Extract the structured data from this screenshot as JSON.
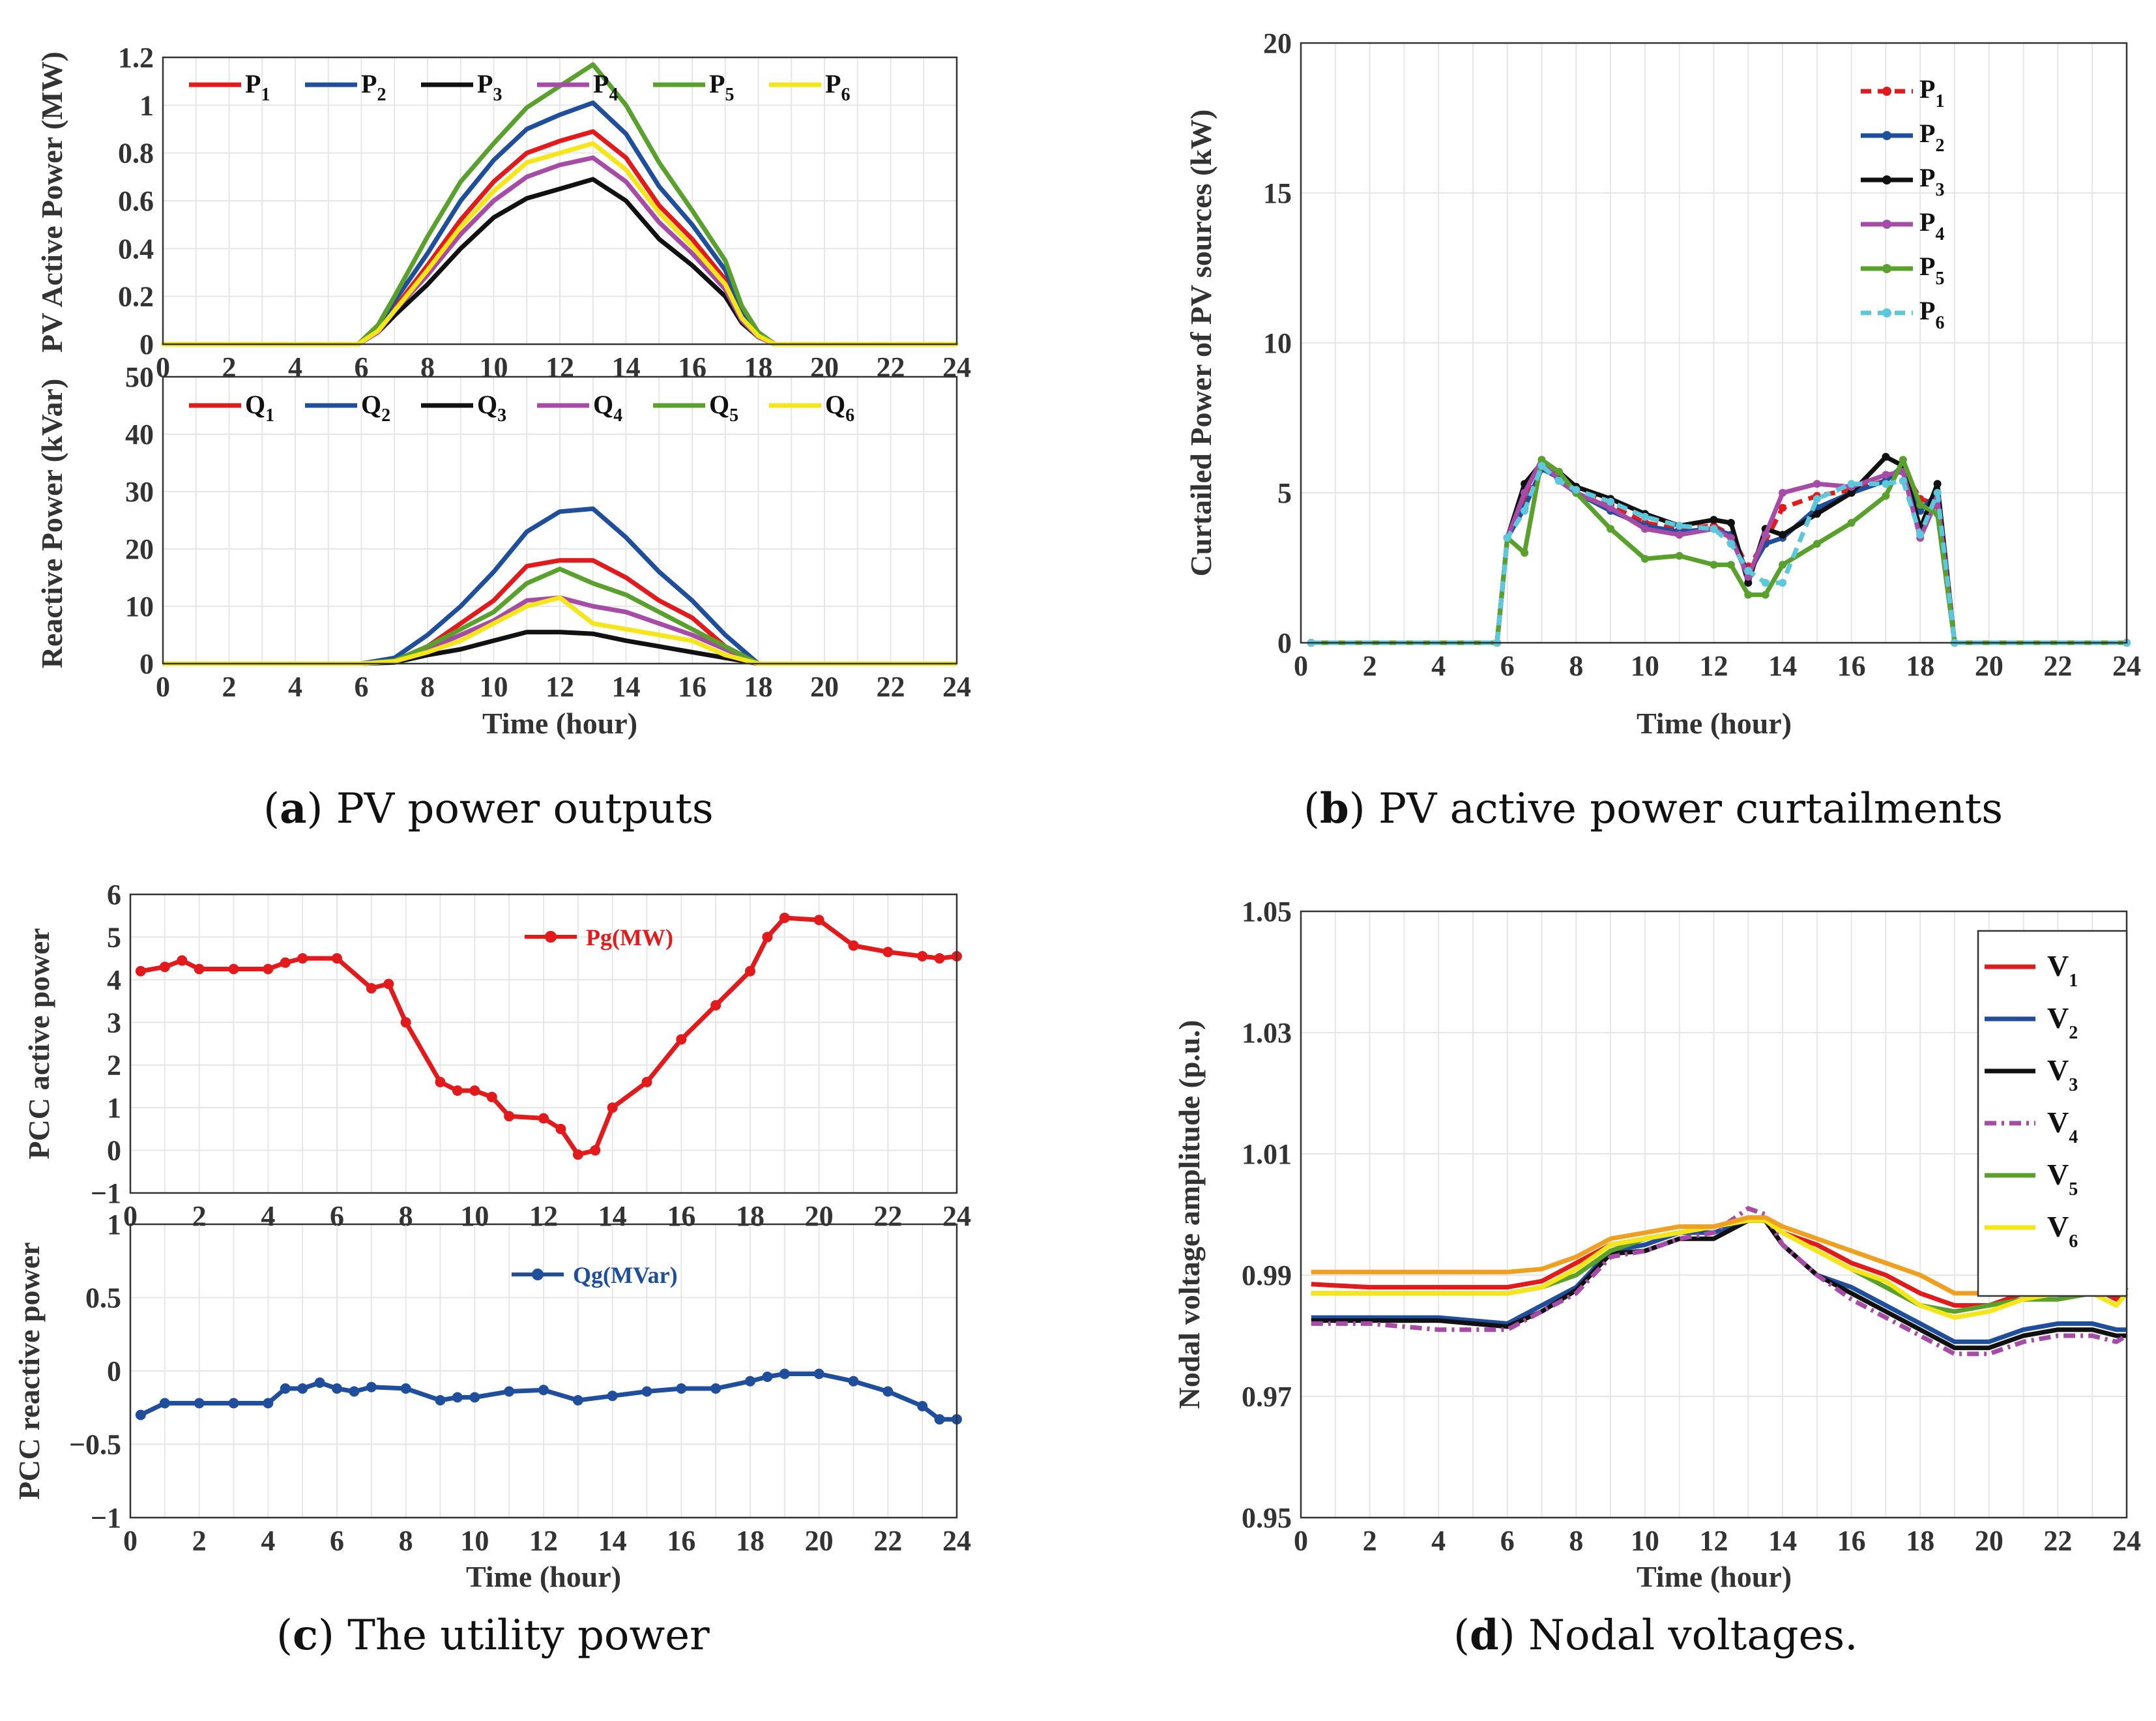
{
  "captions": [
    {
      "id": "a",
      "letter": "a",
      "text": " PV power outputs"
    },
    {
      "id": "b",
      "letter": "b",
      "text": " PV active power curtailments"
    },
    {
      "id": "c",
      "letter": "c",
      "text": " The utility power"
    },
    {
      "id": "d",
      "letter": "d",
      "text": " Nodal voltages."
    }
  ],
  "colors": {
    "red": "#e31a1c",
    "blue": "#1f4e9c",
    "black": "#111111",
    "purple": "#a64ca6",
    "green": "#5aa02c",
    "yellow": "#f5e61a",
    "cyan": "#5bc8dc",
    "orange": "#f0a020"
  },
  "chart_data": [
    {
      "id": "a_top",
      "type": "line",
      "ylabel": "PV Active Power (MW)",
      "xlabel": "",
      "xlim": [
        0,
        24
      ],
      "ylim": [
        0,
        1.2
      ],
      "xticks": [
        0,
        2,
        4,
        6,
        8,
        10,
        12,
        14,
        16,
        18,
        20,
        22,
        24
      ],
      "yticks": [
        0,
        0.2,
        0.4,
        0.6,
        0.8,
        1,
        1.2
      ],
      "ytick_labels": [
        "0",
        "0.2",
        "0.4",
        "0.6",
        "0.8",
        "1",
        "1.2"
      ],
      "x": [
        0,
        5.9,
        6.5,
        7,
        8,
        9,
        10,
        11,
        12,
        13,
        14,
        15,
        16,
        17,
        17.5,
        18,
        18.5,
        24
      ],
      "series": [
        {
          "name": "P",
          "sub": "1",
          "color": "red",
          "values": [
            0,
            0,
            0.06,
            0.15,
            0.33,
            0.52,
            0.68,
            0.8,
            0.85,
            0.89,
            0.78,
            0.58,
            0.44,
            0.27,
            0.12,
            0.04,
            0,
            0
          ]
        },
        {
          "name": "P",
          "sub": "2",
          "color": "blue",
          "values": [
            0,
            0,
            0.07,
            0.18,
            0.38,
            0.6,
            0.77,
            0.9,
            0.96,
            1.01,
            0.88,
            0.66,
            0.5,
            0.31,
            0.14,
            0.05,
            0,
            0
          ]
        },
        {
          "name": "P",
          "sub": "3",
          "color": "black",
          "values": [
            0,
            0,
            0.05,
            0.12,
            0.25,
            0.4,
            0.53,
            0.61,
            0.65,
            0.69,
            0.6,
            0.44,
            0.33,
            0.2,
            0.09,
            0.03,
            0,
            0
          ]
        },
        {
          "name": "P",
          "sub": "4",
          "color": "purple",
          "values": [
            0,
            0,
            0.05,
            0.14,
            0.29,
            0.46,
            0.6,
            0.7,
            0.75,
            0.78,
            0.68,
            0.51,
            0.38,
            0.23,
            0.1,
            0.03,
            0,
            0
          ]
        },
        {
          "name": "P",
          "sub": "5",
          "color": "green",
          "values": [
            0,
            0,
            0.08,
            0.2,
            0.45,
            0.68,
            0.84,
            0.99,
            1.08,
            1.17,
            1.0,
            0.76,
            0.56,
            0.35,
            0.16,
            0.05,
            0,
            0
          ]
        },
        {
          "name": "P",
          "sub": "6",
          "color": "yellow",
          "values": [
            0,
            0,
            0.055,
            0.14,
            0.31,
            0.49,
            0.64,
            0.76,
            0.8,
            0.84,
            0.73,
            0.55,
            0.41,
            0.25,
            0.11,
            0.035,
            0,
            0
          ]
        }
      ]
    },
    {
      "id": "a_bottom",
      "type": "line",
      "ylabel": "Reactive Power (kVar)",
      "xlabel": "Time (hour)",
      "xlim": [
        0,
        24
      ],
      "ylim": [
        0,
        50
      ],
      "xticks": [
        0,
        2,
        4,
        6,
        8,
        10,
        12,
        14,
        16,
        18,
        20,
        22,
        24
      ],
      "yticks": [
        0,
        10,
        20,
        30,
        40,
        50
      ],
      "ytick_labels": [
        "0",
        "10",
        "20",
        "30",
        "40",
        "50"
      ],
      "x": [
        0,
        6,
        7,
        8,
        9,
        10,
        11,
        12,
        13,
        14,
        15,
        16,
        17,
        18,
        24
      ],
      "series": [
        {
          "name": "Q",
          "sub": "1",
          "color": "red",
          "values": [
            0,
            0,
            0.5,
            3,
            7,
            11,
            17,
            18,
            18,
            15,
            11,
            8,
            3,
            0,
            0
          ]
        },
        {
          "name": "Q",
          "sub": "2",
          "color": "blue",
          "values": [
            0,
            0,
            1,
            5,
            10,
            16,
            23,
            26.5,
            27,
            22,
            16,
            11,
            5,
            0,
            0
          ]
        },
        {
          "name": "Q",
          "sub": "3",
          "color": "black",
          "values": [
            0,
            0,
            0.2,
            1.5,
            2.5,
            4,
            5.5,
            5.5,
            5.2,
            4,
            3,
            2,
            1,
            0,
            0
          ]
        },
        {
          "name": "Q",
          "sub": "4",
          "color": "purple",
          "values": [
            0,
            0,
            0.4,
            2.5,
            5,
            7.5,
            11,
            11.5,
            10,
            9,
            7,
            5,
            2.5,
            0,
            0
          ]
        },
        {
          "name": "Q",
          "sub": "5",
          "color": "green",
          "values": [
            0,
            0,
            0.5,
            3,
            6,
            9,
            14,
            16.5,
            14,
            12,
            9,
            6,
            3,
            0,
            0
          ]
        },
        {
          "name": "Q",
          "sub": "6",
          "color": "yellow",
          "values": [
            0,
            0,
            0.4,
            2,
            4,
            7,
            10,
            11.5,
            7,
            6,
            5,
            4,
            1.5,
            0,
            0
          ]
        }
      ]
    },
    {
      "id": "b",
      "type": "line",
      "ylabel": "Curtailed Power of PV sources (kW)",
      "xlabel": "Time (hour)",
      "xlim": [
        0,
        24
      ],
      "ylim": [
        0,
        20
      ],
      "xticks": [
        0,
        2,
        4,
        6,
        8,
        10,
        12,
        14,
        16,
        18,
        20,
        22,
        24
      ],
      "yticks": [
        0,
        5,
        10,
        15,
        20
      ],
      "ytick_labels": [
        "0",
        "5",
        "10",
        "15",
        "20"
      ],
      "x": [
        0.3,
        5.7,
        6,
        6.5,
        7,
        7.5,
        8,
        9,
        10,
        11,
        12,
        12.5,
        13,
        13.5,
        14,
        15,
        16,
        17,
        17.5,
        18,
        18.5,
        19,
        24
      ],
      "series": [
        {
          "name": "P",
          "sub": "1",
          "color": "red",
          "values": [
            0,
            0,
            3.5,
            4.8,
            5.9,
            5.6,
            5.2,
            4.6,
            4.0,
            3.8,
            3.9,
            3.6,
            2.5,
            3.4,
            4.5,
            4.9,
            5.1,
            5.4,
            5.8,
            4.8,
            4.6,
            0,
            0
          ]
        },
        {
          "name": "P",
          "sub": "2",
          "color": "blue",
          "values": [
            0,
            0,
            3.5,
            4.5,
            5.8,
            5.5,
            5.0,
            4.4,
            3.9,
            3.7,
            3.8,
            3.6,
            2.3,
            3.3,
            3.5,
            4.5,
            5.0,
            5.4,
            5.9,
            4.4,
            5.0,
            0,
            0
          ]
        },
        {
          "name": "P",
          "sub": "3",
          "color": "black",
          "values": [
            0,
            0,
            3.5,
            5.3,
            6.0,
            5.7,
            5.2,
            4.8,
            4.3,
            3.9,
            4.1,
            4.0,
            2.0,
            3.8,
            3.6,
            4.3,
            5.0,
            6.2,
            5.9,
            3.8,
            5.3,
            0,
            0
          ]
        },
        {
          "name": "P",
          "sub": "4",
          "color": "purple",
          "values": [
            0,
            0,
            3.5,
            5.0,
            6.1,
            5.4,
            5.0,
            4.5,
            3.8,
            3.6,
            3.8,
            3.5,
            2.2,
            3.6,
            5.0,
            5.3,
            5.2,
            5.6,
            5.7,
            3.5,
            4.8,
            0,
            0
          ]
        },
        {
          "name": "P",
          "sub": "5",
          "color": "green",
          "values": [
            0,
            0,
            3.5,
            3.0,
            6.1,
            5.7,
            5.0,
            3.8,
            2.8,
            2.9,
            2.6,
            2.6,
            1.6,
            1.6,
            2.6,
            3.3,
            4.0,
            4.9,
            6.1,
            4.6,
            4.3,
            0,
            0
          ]
        },
        {
          "name": "P",
          "sub": "6",
          "color": "cyan",
          "values": [
            0,
            0,
            3.5,
            4.4,
            5.9,
            5.4,
            5.1,
            4.7,
            4.2,
            3.9,
            3.8,
            3.3,
            2.4,
            2.0,
            2.0,
            4.8,
            5.3,
            5.3,
            5.4,
            3.6,
            5.0,
            0,
            0
          ]
        }
      ]
    },
    {
      "id": "c_top",
      "type": "line",
      "ylabel": "PCC active power",
      "xlabel": "",
      "xlim": [
        0,
        24
      ],
      "ylim": [
        -1,
        6
      ],
      "xticks": [
        0,
        2,
        4,
        6,
        8,
        10,
        12,
        14,
        16,
        18,
        20,
        22,
        24
      ],
      "yticks": [
        -1,
        0,
        1,
        2,
        3,
        4,
        5,
        6
      ],
      "ytick_labels": [
        "−1",
        "0",
        "1",
        "2",
        "3",
        "4",
        "5",
        "6"
      ],
      "x": [
        0.3,
        1,
        1.5,
        2,
        3,
        4,
        4.5,
        5,
        6,
        7,
        7.5,
        8,
        9,
        9.5,
        10,
        10.5,
        11,
        12,
        12.5,
        13,
        13.5,
        14,
        15,
        16,
        17,
        18,
        18.5,
        19,
        20,
        21,
        22,
        23,
        23.5,
        24
      ],
      "series": [
        {
          "name": "Pg(MW)",
          "color": "red",
          "values": [
            4.2,
            4.3,
            4.45,
            4.25,
            4.25,
            4.25,
            4.4,
            4.5,
            4.5,
            3.8,
            3.9,
            3.0,
            1.6,
            1.4,
            1.4,
            1.25,
            0.8,
            0.75,
            0.5,
            -0.1,
            0,
            1.0,
            1.6,
            2.6,
            3.4,
            4.2,
            5.0,
            5.45,
            5.4,
            4.8,
            4.65,
            4.55,
            4.5,
            4.55
          ]
        }
      ]
    },
    {
      "id": "c_bottom",
      "type": "line",
      "ylabel": "PCC reactive power",
      "xlabel": "Time (hour)",
      "xlim": [
        0,
        24
      ],
      "ylim": [
        -1,
        1
      ],
      "xticks": [
        0,
        2,
        4,
        6,
        8,
        10,
        12,
        14,
        16,
        18,
        20,
        22,
        24
      ],
      "yticks": [
        -1,
        -0.5,
        0,
        0.5,
        1
      ],
      "ytick_labels": [
        "−1",
        "−0.5",
        "0",
        "0.5",
        "1"
      ],
      "x": [
        0.3,
        1,
        2,
        3,
        4,
        4.5,
        5,
        5.5,
        6,
        6.5,
        7,
        8,
        9,
        9.5,
        10,
        11,
        12,
        13,
        14,
        15,
        16,
        17,
        18,
        18.5,
        19,
        20,
        21,
        22,
        23,
        23.5,
        24
      ],
      "series": [
        {
          "name": "Qg(MVar)",
          "color": "blue",
          "values": [
            -0.3,
            -0.22,
            -0.22,
            -0.22,
            -0.22,
            -0.12,
            -0.12,
            -0.08,
            -0.12,
            -0.14,
            -0.11,
            -0.12,
            -0.2,
            -0.18,
            -0.18,
            -0.14,
            -0.13,
            -0.2,
            -0.17,
            -0.14,
            -0.12,
            -0.12,
            -0.07,
            -0.04,
            -0.02,
            -0.02,
            -0.07,
            -0.14,
            -0.24,
            -0.33,
            -0.33
          ]
        }
      ]
    },
    {
      "id": "d",
      "type": "line",
      "ylabel": "Nodal voltage amplitude (p.u.)",
      "xlabel": "Time (hour)",
      "xlim": [
        0,
        24
      ],
      "ylim": [
        0.95,
        1.05
      ],
      "xticks": [
        0,
        2,
        4,
        6,
        8,
        10,
        12,
        14,
        16,
        18,
        20,
        22,
        24
      ],
      "yticks": [
        0.95,
        0.97,
        0.99,
        1.01,
        1.03,
        1.05
      ],
      "ytick_labels": [
        "0.95",
        "0.97",
        "0.99",
        "1.01",
        "1.03",
        "1.05"
      ],
      "x": [
        0.3,
        2,
        4,
        6,
        7,
        8,
        9,
        10,
        11,
        12,
        13,
        13.5,
        14,
        15,
        16,
        17,
        18,
        19,
        20,
        21,
        22,
        23,
        23.7,
        24
      ],
      "series": [
        {
          "name": "V",
          "sub": "1",
          "color": "red",
          "values": [
            0.9885,
            0.988,
            0.988,
            0.988,
            0.989,
            0.992,
            0.995,
            0.996,
            0.997,
            0.998,
            0.999,
            0.999,
            0.997,
            0.995,
            0.992,
            0.99,
            0.987,
            0.985,
            0.985,
            0.987,
            0.988,
            0.988,
            0.986,
            0.988
          ]
        },
        {
          "name": "V",
          "sub": "2",
          "color": "blue",
          "values": [
            0.983,
            0.983,
            0.983,
            0.982,
            0.985,
            0.988,
            0.994,
            0.995,
            0.997,
            0.997,
            0.999,
            0.999,
            0.995,
            0.99,
            0.988,
            0.985,
            0.982,
            0.979,
            0.979,
            0.981,
            0.982,
            0.982,
            0.981,
            0.981
          ]
        },
        {
          "name": "V",
          "sub": "3",
          "color": "black",
          "values": [
            0.9825,
            0.9825,
            0.9825,
            0.9815,
            0.984,
            0.9875,
            0.9935,
            0.994,
            0.996,
            0.996,
            0.999,
            0.999,
            0.995,
            0.99,
            0.987,
            0.984,
            0.981,
            0.978,
            0.978,
            0.98,
            0.981,
            0.981,
            0.98,
            0.98
          ]
        },
        {
          "name": "V",
          "sub": "4",
          "color": "purple",
          "values": [
            0.982,
            0.982,
            0.981,
            0.981,
            0.984,
            0.987,
            0.993,
            0.994,
            0.996,
            0.997,
            1.001,
            1.0,
            0.995,
            0.99,
            0.986,
            0.983,
            0.98,
            0.977,
            0.977,
            0.979,
            0.98,
            0.98,
            0.979,
            0.98
          ]
        },
        {
          "name": "V",
          "sub": "5",
          "color": "green",
          "values": [
            0.987,
            0.987,
            0.987,
            0.987,
            0.988,
            0.99,
            0.994,
            0.996,
            0.997,
            0.998,
            0.999,
            0.999,
            0.997,
            0.994,
            0.991,
            0.988,
            0.985,
            0.984,
            0.985,
            0.986,
            0.986,
            0.987,
            0.987,
            0.987
          ]
        },
        {
          "name": "V",
          "sub": "6",
          "color": "yellow",
          "values": [
            0.987,
            0.987,
            0.987,
            0.987,
            0.988,
            0.991,
            0.995,
            0.996,
            0.997,
            0.998,
            0.999,
            0.999,
            0.997,
            0.994,
            0.991,
            0.989,
            0.985,
            0.983,
            0.984,
            0.986,
            0.987,
            0.987,
            0.985,
            0.987
          ]
        },
        {
          "name": "",
          "color": "orange",
          "values": [
            0.9905,
            0.9905,
            0.9905,
            0.9905,
            0.991,
            0.993,
            0.996,
            0.997,
            0.998,
            0.998,
            0.9995,
            0.9995,
            0.998,
            0.996,
            0.994,
            0.992,
            0.99,
            0.987,
            0.987,
            0.989,
            0.989,
            0.99,
            0.989,
            0.99
          ]
        }
      ]
    }
  ]
}
